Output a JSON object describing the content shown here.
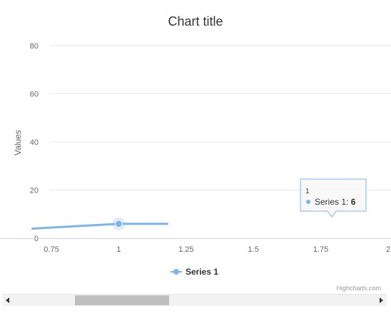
{
  "chart_data": {
    "type": "line",
    "title": "Chart title",
    "xlabel": "",
    "ylabel": "Values",
    "xlim": [
      0.7,
      1.95
    ],
    "ylim": [
      0,
      80
    ],
    "x_ticks": [
      "0.75",
      "1",
      "1.25",
      "1.5",
      "1.75",
      "2"
    ],
    "y_ticks": [
      "0",
      "20",
      "40",
      "60",
      "80"
    ],
    "grid": true,
    "legend": "bottom-center",
    "series": [
      {
        "name": "Series 1",
        "color": "#7cb5ec",
        "points": [
          {
            "x": 0.68,
            "y": 4
          },
          {
            "x": 1,
            "y": 6
          },
          {
            "x": 1.18,
            "y": 6
          }
        ]
      }
    ],
    "highlighted_point": {
      "x": 1,
      "y": 6
    },
    "tooltip": {
      "header": "1",
      "series_label": "Series 1: ",
      "value": "6"
    },
    "credits": "Highcharts.com"
  },
  "scrollbar": {
    "thumb_start": 0.17,
    "thumb_size": 0.26
  }
}
